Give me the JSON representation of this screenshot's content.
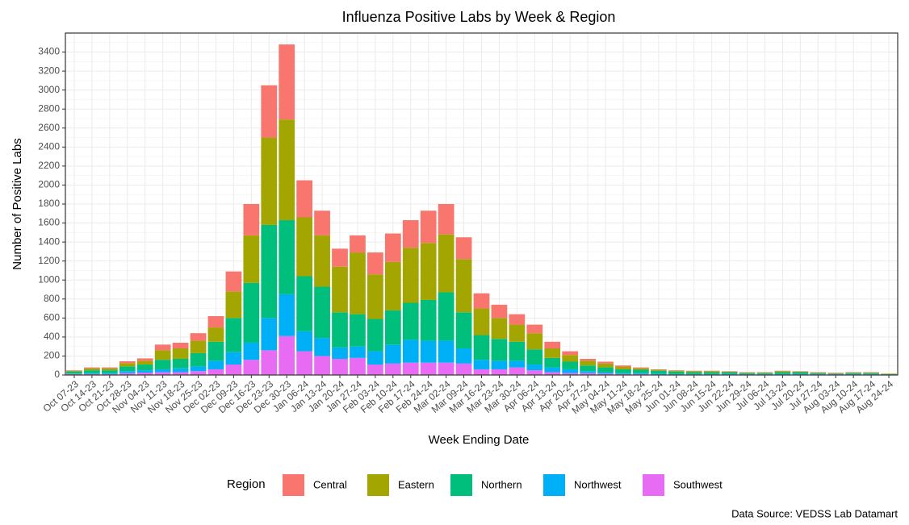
{
  "chart_data": {
    "type": "stacked_bar",
    "title": "Influenza Positive Labs by Week & Region",
    "x_label": "Week Ending Date",
    "y_label": "Number of Positive Labs",
    "legend_title": "Region",
    "caption": "Data Source: VEDSS Lab Datamart",
    "grid": true,
    "legend_position": "bottom",
    "categories": [
      "Oct 07-23",
      "Oct 14-23",
      "Oct 21-23",
      "Oct 28-23",
      "Nov 04-23",
      "Nov 11-23",
      "Nov 18-23",
      "Nov 25-23",
      "Dec 02-23",
      "Dec 09-23",
      "Dec 16-23",
      "Dec 23-23",
      "Dec 30-23",
      "Jan 06-24",
      "Jan 13-24",
      "Jan 20-24",
      "Jan 27-24",
      "Feb 03-24",
      "Feb 10-24",
      "Feb 17-24",
      "Feb 24-24",
      "Mar 02-24",
      "Mar 09-24",
      "Mar 16-24",
      "Mar 23-24",
      "Mar 30-24",
      "Apr 06-24",
      "Apr 13-24",
      "Apr 20-24",
      "Apr 27-24",
      "May 04-24",
      "May 11-24",
      "May 18-24",
      "May 25-24",
      "Jun 01-24",
      "Jun 08-24",
      "Jun 15-24",
      "Jun 22-24",
      "Jun 29-24",
      "Jul 06-24",
      "Jul 13-24",
      "Jul 20-24",
      "Jul 27-24",
      "Aug 03-24",
      "Aug 10-24",
      "Aug 17-24",
      "Aug 24-24"
    ],
    "series": [
      {
        "name": "Central",
        "color": "#F8766D",
        "values": [
          5,
          10,
          10,
          20,
          25,
          60,
          60,
          80,
          120,
          210,
          330,
          550,
          790,
          390,
          260,
          190,
          180,
          230,
          300,
          290,
          340,
          320,
          230,
          160,
          140,
          110,
          90,
          70,
          40,
          20,
          20,
          15,
          10,
          5,
          5,
          5,
          5,
          5,
          5,
          5,
          5,
          5,
          5,
          5,
          5,
          5,
          0
        ]
      },
      {
        "name": "Eastern",
        "color": "#A3A500",
        "values": [
          10,
          20,
          20,
          35,
          40,
          100,
          110,
          130,
          150,
          280,
          500,
          920,
          1060,
          620,
          540,
          480,
          650,
          470,
          510,
          580,
          600,
          610,
          560,
          280,
          220,
          180,
          170,
          100,
          70,
          50,
          40,
          25,
          15,
          10,
          10,
          10,
          10,
          5,
          5,
          5,
          10,
          5,
          5,
          5,
          5,
          5,
          5
        ]
      },
      {
        "name": "Northern",
        "color": "#00BF7D",
        "values": [
          20,
          30,
          30,
          50,
          60,
          100,
          100,
          140,
          200,
          360,
          630,
          980,
          780,
          580,
          540,
          370,
          340,
          340,
          360,
          390,
          430,
          510,
          380,
          260,
          230,
          200,
          160,
          100,
          80,
          60,
          50,
          40,
          35,
          30,
          25,
          20,
          20,
          20,
          10,
          10,
          20,
          20,
          10,
          5,
          10,
          10,
          5
        ]
      },
      {
        "name": "Northwest",
        "color": "#00B0F6",
        "values": [
          5,
          10,
          10,
          20,
          25,
          30,
          40,
          50,
          90,
          130,
          180,
          340,
          440,
          210,
          190,
          120,
          120,
          140,
          200,
          240,
          230,
          230,
          160,
          100,
          90,
          70,
          60,
          50,
          40,
          20,
          15,
          10,
          10,
          10,
          5,
          5,
          5,
          5,
          5,
          5,
          5,
          5,
          5,
          5,
          5,
          5,
          5
        ]
      },
      {
        "name": "Southwest",
        "color": "#E76BF3",
        "values": [
          10,
          10,
          10,
          20,
          25,
          30,
          30,
          40,
          60,
          110,
          160,
          260,
          410,
          250,
          200,
          170,
          180,
          110,
          120,
          130,
          130,
          130,
          120,
          60,
          60,
          80,
          50,
          30,
          20,
          20,
          15,
          10,
          10,
          5,
          5,
          5,
          5,
          5,
          5,
          5,
          5,
          5,
          5,
          5,
          5,
          5,
          0
        ]
      }
    ],
    "ylim": [
      0,
      3600
    ],
    "yticks": [
      0,
      200,
      400,
      600,
      800,
      1000,
      1200,
      1400,
      1600,
      1800,
      2000,
      2200,
      2400,
      2600,
      2800,
      3000,
      3200,
      3400
    ]
  }
}
